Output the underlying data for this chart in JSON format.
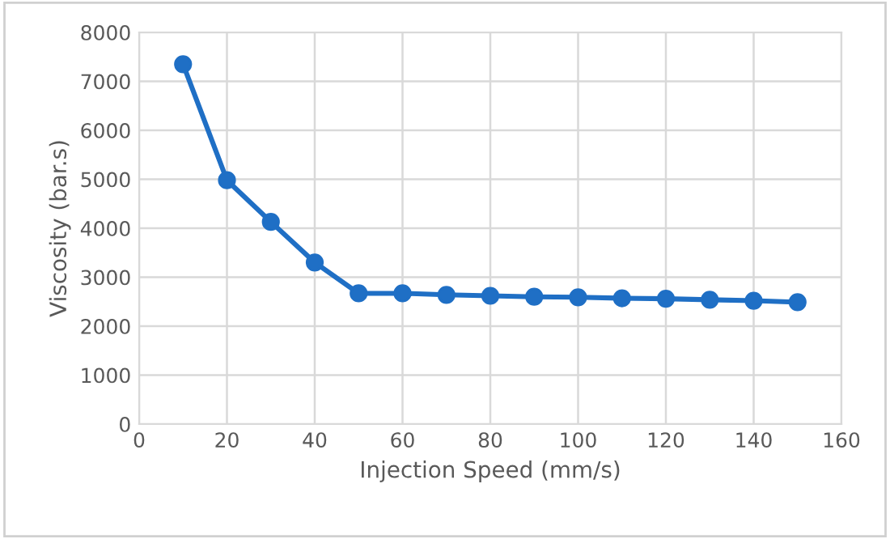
{
  "chart_data": {
    "type": "line",
    "xlabel": "Injection Speed (mm/s)",
    "ylabel": "Viscosity (bar.s)",
    "x": [
      10,
      20,
      30,
      40,
      50,
      60,
      70,
      80,
      90,
      100,
      110,
      120,
      130,
      140,
      150
    ],
    "series": [
      {
        "color": "#1f6fc5",
        "values": [
          7350,
          4980,
          4130,
          3300,
          2670,
          2670,
          2640,
          2620,
          2600,
          2590,
          2570,
          2560,
          2540,
          2520,
          2490
        ]
      }
    ],
    "xlim": [
      0,
      160
    ],
    "xticks": [
      0,
      20,
      40,
      60,
      80,
      100,
      120,
      140,
      160
    ],
    "ylim": [
      0,
      8000
    ],
    "yticks": [
      0,
      1000,
      2000,
      3000,
      4000,
      5000,
      6000,
      7000,
      8000
    ],
    "grid": true,
    "marker": "circle",
    "line_style": "solid"
  }
}
